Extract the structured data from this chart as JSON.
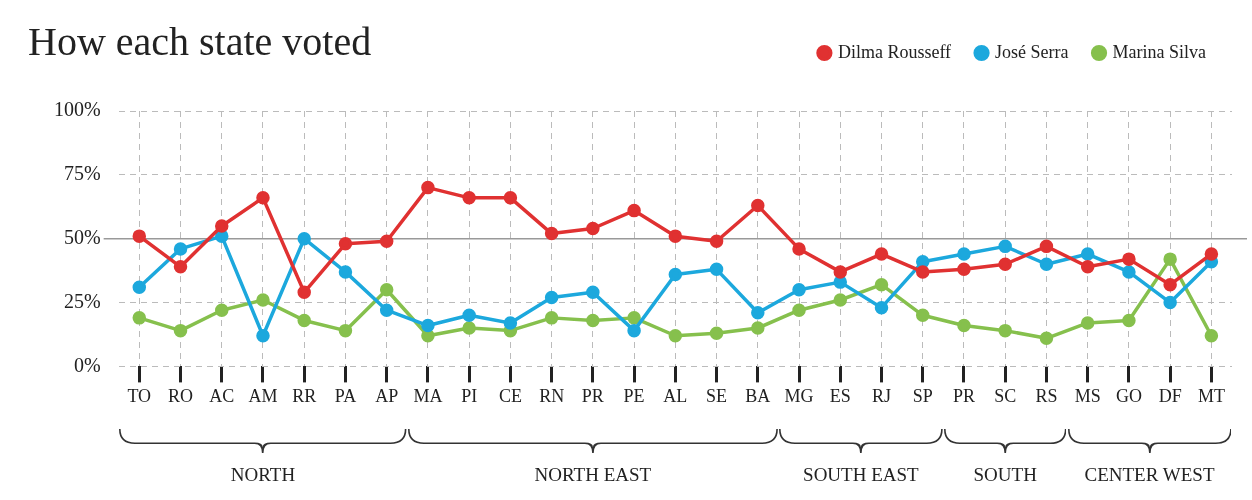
{
  "chart_data": {
    "type": "line",
    "title": "How each state voted",
    "categories": [
      "TO",
      "RO",
      "AC",
      "AM",
      "RR",
      "PA",
      "AP",
      "MA",
      "PI",
      "CE",
      "RN",
      "PR",
      "PE",
      "AL",
      "SE",
      "BA",
      "MG",
      "ES",
      "RJ",
      "SP",
      "PR",
      "SC",
      "RS",
      "MS",
      "GO",
      "DF",
      "MT"
    ],
    "series": [
      {
        "name": "Dilma Rousseff",
        "color": "#e03131",
        "values": [
          51,
          39,
          55,
          66,
          29,
          48,
          49,
          70,
          66,
          66,
          52,
          54,
          61,
          51,
          49,
          63,
          46,
          37,
          44,
          37,
          38,
          40,
          47,
          39,
          42,
          32,
          44
        ]
      },
      {
        "name": "José Serra",
        "color": "#1ca8dd",
        "values": [
          31,
          46,
          51,
          12,
          50,
          37,
          22,
          16,
          20,
          17,
          27,
          29,
          14,
          36,
          38,
          21,
          30,
          33,
          23,
          41,
          44,
          47,
          40,
          44,
          37,
          25,
          41
        ]
      },
      {
        "name": "Marina Silva",
        "color": "#86c04d",
        "values": [
          19,
          14,
          22,
          26,
          18,
          14,
          30,
          12,
          15,
          14,
          19,
          18,
          19,
          12,
          13,
          15,
          22,
          26,
          32,
          20,
          16,
          14,
          11,
          17,
          18,
          42,
          12
        ]
      }
    ],
    "ylim": [
      0,
      100
    ],
    "yticks": [
      {
        "value": 0,
        "label": "0%"
      },
      {
        "value": 25,
        "label": "25%"
      },
      {
        "value": 50,
        "label": "50%"
      },
      {
        "value": 75,
        "label": "75%"
      },
      {
        "value": 100,
        "label": "100%"
      }
    ],
    "ref_lines": [
      {
        "axis": "y",
        "value": 50,
        "label": null,
        "color": "#999999",
        "line_style": "solid"
      }
    ],
    "annotations": [
      "NORTH",
      "NORTH EAST",
      "SOUTH EAST",
      "SOUTH",
      "CENTER WEST"
    ],
    "grid": true,
    "legend": "top right",
    "marker": "circle",
    "line_style": "solid"
  }
}
